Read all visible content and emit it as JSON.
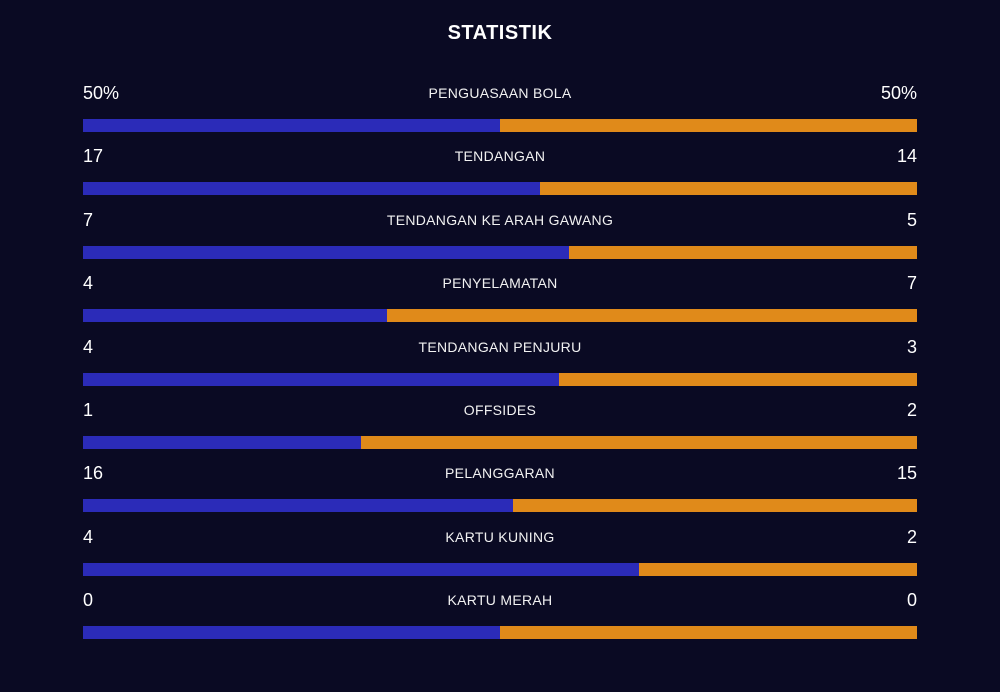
{
  "title": "STATISTIK",
  "colors": {
    "background": "#0a0a23",
    "home_bar": "#2b2bb8",
    "away_bar": "#e08a1a"
  },
  "stats": [
    {
      "label": "PENGUASAAN BOLA",
      "home": "50%",
      "away": "50%",
      "home_share": 0.5
    },
    {
      "label": "TENDANGAN",
      "home": "17",
      "away": "14",
      "home_share": 0.548
    },
    {
      "label": "TENDANGAN KE ARAH GAWANG",
      "home": "7",
      "away": "5",
      "home_share": 0.583
    },
    {
      "label": "PENYELAMATAN",
      "home": "4",
      "away": "7",
      "home_share": 0.364
    },
    {
      "label": "TENDANGAN PENJURU",
      "home": "4",
      "away": "3",
      "home_share": 0.571
    },
    {
      "label": "OFFSIDES",
      "home": "1",
      "away": "2",
      "home_share": 0.333
    },
    {
      "label": "PELANGGARAN",
      "home": "16",
      "away": "15",
      "home_share": 0.516
    },
    {
      "label": "KARTU KUNING",
      "home": "4",
      "away": "2",
      "home_share": 0.667
    },
    {
      "label": "KARTU MERAH",
      "home": "0",
      "away": "0",
      "home_share": 0.5
    }
  ]
}
